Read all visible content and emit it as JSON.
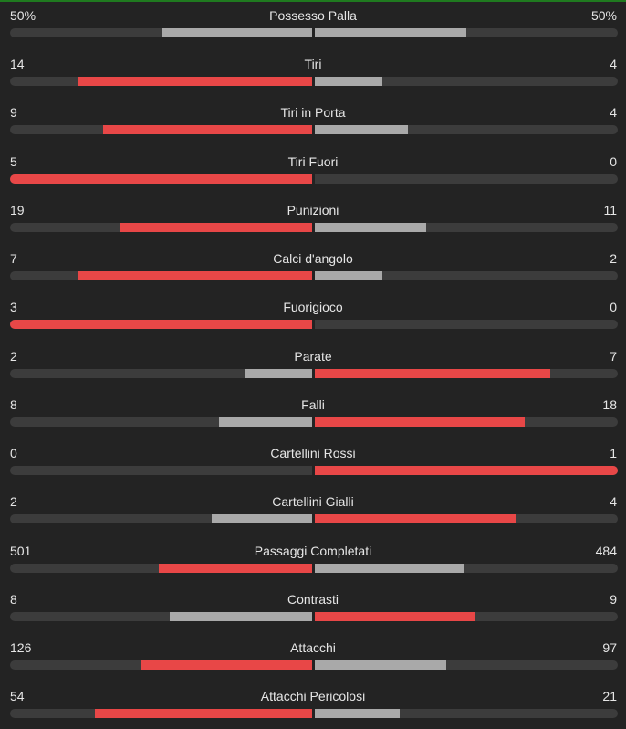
{
  "accent_colors": {
    "leader": "#e84747",
    "trailer": "#a9a9a9",
    "track": "#3c3c3c",
    "top_border": "#1f7a1f"
  },
  "stats": [
    {
      "label": "Possesso Palla",
      "home": "50%",
      "away": "50%",
      "home_value": 50,
      "away_value": 50
    },
    {
      "label": "Tiri",
      "home": "14",
      "away": "4",
      "home_value": 14,
      "away_value": 4
    },
    {
      "label": "Tiri in Porta",
      "home": "9",
      "away": "4",
      "home_value": 9,
      "away_value": 4
    },
    {
      "label": "Tiri Fuori",
      "home": "5",
      "away": "0",
      "home_value": 5,
      "away_value": 0
    },
    {
      "label": "Punizioni",
      "home": "19",
      "away": "11",
      "home_value": 19,
      "away_value": 11
    },
    {
      "label": "Calci d'angolo",
      "home": "7",
      "away": "2",
      "home_value": 7,
      "away_value": 2
    },
    {
      "label": "Fuorigioco",
      "home": "3",
      "away": "0",
      "home_value": 3,
      "away_value": 0
    },
    {
      "label": "Parate",
      "home": "2",
      "away": "7",
      "home_value": 2,
      "away_value": 7
    },
    {
      "label": "Falli",
      "home": "8",
      "away": "18",
      "home_value": 8,
      "away_value": 18
    },
    {
      "label": "Cartellini Rossi",
      "home": "0",
      "away": "1",
      "home_value": 0,
      "away_value": 1
    },
    {
      "label": "Cartellini Gialli",
      "home": "2",
      "away": "4",
      "home_value": 2,
      "away_value": 4
    },
    {
      "label": "Passaggi Completati",
      "home": "501",
      "away": "484",
      "home_value": 501,
      "away_value": 484
    },
    {
      "label": "Contrasti",
      "home": "8",
      "away": "9",
      "home_value": 8,
      "away_value": 9
    },
    {
      "label": "Attacchi",
      "home": "126",
      "away": "97",
      "home_value": 126,
      "away_value": 97
    },
    {
      "label": "Attacchi Pericolosi",
      "home": "54",
      "away": "21",
      "home_value": 54,
      "away_value": 21
    }
  ]
}
